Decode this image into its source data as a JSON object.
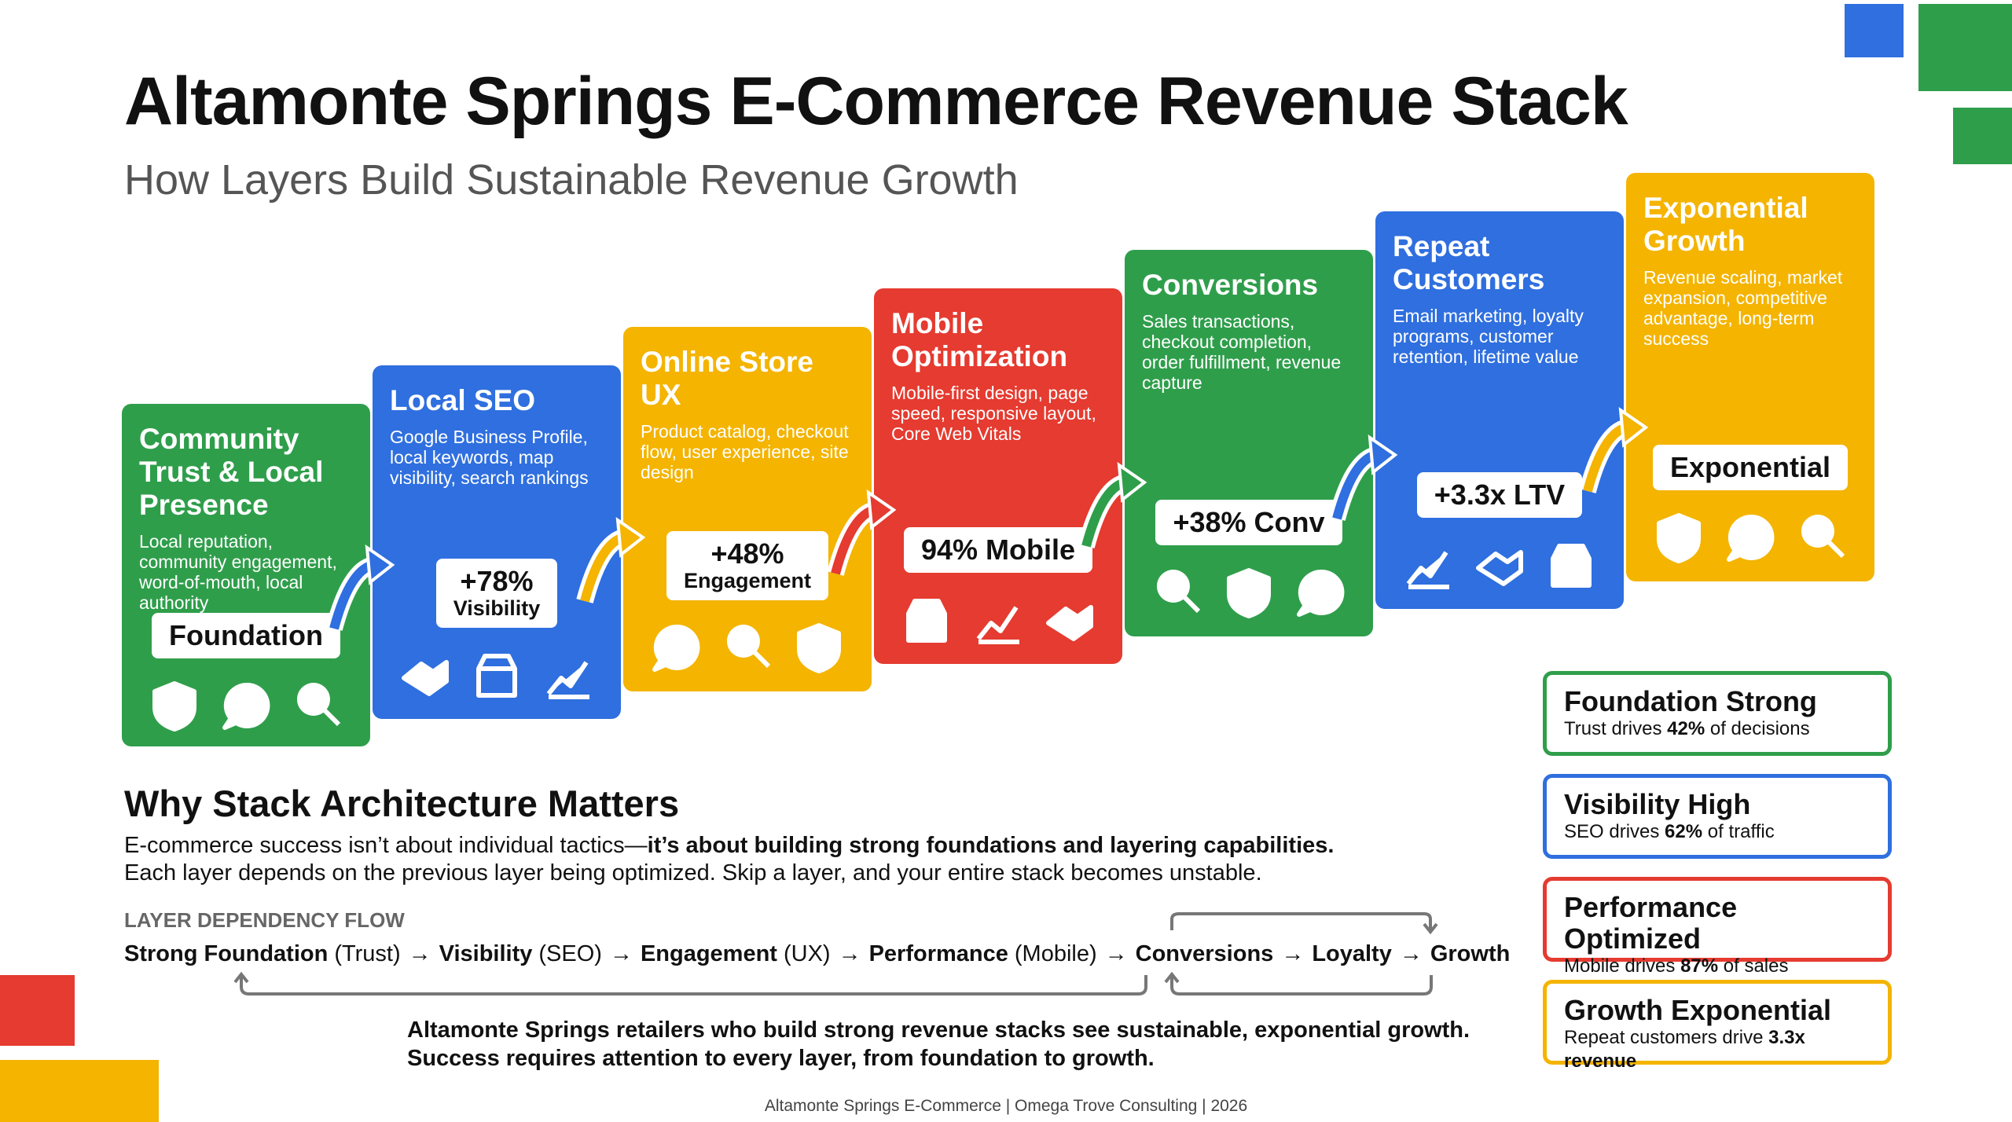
{
  "header": {
    "title": "Altamonte Springs E-Commerce Revenue Stack",
    "subtitle": "How Layers Build Sustainable Revenue Growth"
  },
  "layers": [
    {
      "title": "Community Trust & Local Presence",
      "description": "Local reputation, community engagement, word-of-mouth, local authority",
      "metric": [
        "Foundation"
      ],
      "color": "#2f9e4b"
    },
    {
      "title": "Local SEO",
      "description": "Google Business Profile, local keywords, map visibility, search rankings",
      "metric": [
        "+78%",
        "Visibility"
      ],
      "color": "#2f6fdf"
    },
    {
      "title": "Online Store UX",
      "description": "Product catalog, checkout flow, user experience, site design",
      "metric": [
        "+48%",
        "Engagement"
      ],
      "color": "#f4b400"
    },
    {
      "title": "Mobile Optimization",
      "description": "Mobile-first design, page speed, responsive layout, Core Web Vitals",
      "metric": [
        "94% Mobile"
      ],
      "color": "#e53b30"
    },
    {
      "title": "Conversions",
      "description": "Sales transactions, checkout completion, order fulfillment, revenue capture",
      "metric": [
        "+38% Conv"
      ],
      "color": "#2f9e4b"
    },
    {
      "title": "Repeat Customers",
      "description": "Email marketing, loyalty programs, customer retention, lifetime value",
      "metric": [
        "+3.3x LTV"
      ],
      "color": "#2f6fdf"
    },
    {
      "title": "Exponential Growth",
      "description": "Revenue scaling, market expansion, competitive advantage, long-term success",
      "metric": [
        "Exponential"
      ],
      "color": "#f4b400"
    }
  ],
  "callouts": [
    {
      "title": "Foundation Strong",
      "parts": [
        {
          "text": "Trust drives ",
          "bold": false
        },
        {
          "text": "42%",
          "bold": true
        },
        {
          "text": " of decisions",
          "bold": false
        }
      ],
      "color": "#2f9e4b"
    },
    {
      "title": "Visibility High",
      "parts": [
        {
          "text": "SEO drives ",
          "bold": false
        },
        {
          "text": "62%",
          "bold": true
        },
        {
          "text": " of traffic",
          "bold": false
        }
      ],
      "color": "#2f6fdf"
    },
    {
      "title": "Performance Optimized",
      "parts": [
        {
          "text": "Mobile drives ",
          "bold": false
        },
        {
          "text": "87%",
          "bold": true
        },
        {
          "text": " of sales",
          "bold": false
        }
      ],
      "color": "#e53b30"
    },
    {
      "title": "Growth Exponential",
      "parts": [
        {
          "text": "Repeat customers drive ",
          "bold": false
        },
        {
          "text": "3.3x revenue",
          "bold": true
        }
      ],
      "color": "#f4b400"
    }
  ],
  "why": {
    "heading": "Why Stack Architecture Matters",
    "lines": [
      [
        {
          "text": "E-commerce success isn’t about individual tactics—",
          "bold": false
        },
        {
          "text": "it’s about building strong foundations and layering capabilities.",
          "bold": true
        }
      ],
      [
        {
          "text": "Each layer depends on the previous layer being optimized. Skip a layer, and your entire stack becomes unstable.",
          "bold": false
        }
      ]
    ]
  },
  "flow": {
    "label": "LAYER DEPENDENCY FLOW",
    "separator": "→",
    "steps": [
      {
        "name": "Strong Foundation",
        "note": "(Trust)"
      },
      {
        "name": "Visibility",
        "note": "(SEO)"
      },
      {
        "name": "Engagement",
        "note": "(UX)"
      },
      {
        "name": "Performance",
        "note": "(Mobile)"
      },
      {
        "name": "Conversions"
      },
      {
        "name": "Loyalty"
      },
      {
        "name": "Growth"
      }
    ]
  },
  "conclusion": [
    "Altamonte Springs retailers who build strong revenue stacks see sustainable, exponential growth.",
    "Success requires attention to every layer, from foundation to growth."
  ],
  "footer": "Altamonte Springs E-Commerce | Omega Trove Consulting | 2026"
}
